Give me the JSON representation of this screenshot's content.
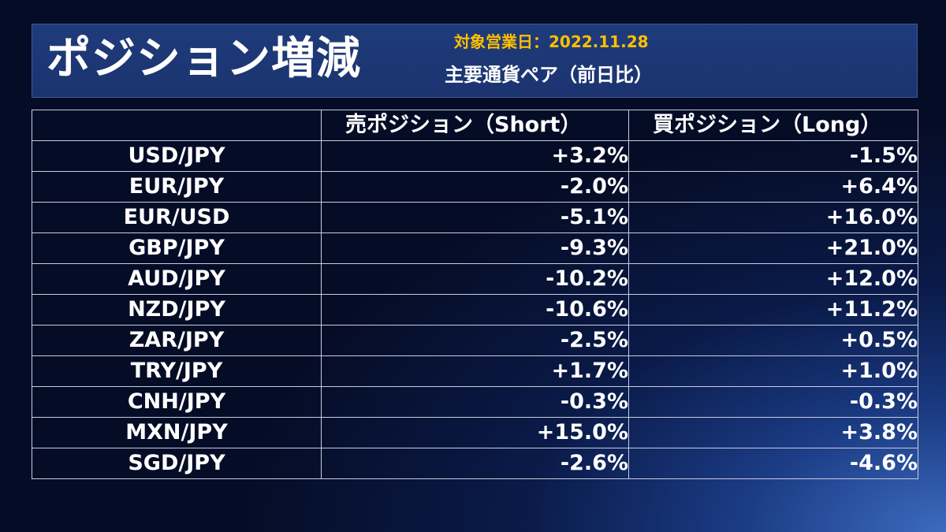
{
  "header": {
    "title": "ポジション増減",
    "date_label": "対象営業日：2022.11.28",
    "subtitle": "主要通貨ペア（前日比）"
  },
  "table": {
    "columns": [
      "",
      "売ポジション（Short）",
      "買ポジション（Long）"
    ],
    "rows": [
      {
        "pair": "USD/JPY",
        "short": "+3.2%",
        "long": "-1.5%"
      },
      {
        "pair": "EUR/JPY",
        "short": "-2.0%",
        "long": "+6.4%"
      },
      {
        "pair": "EUR/USD",
        "short": "-5.1%",
        "long": "+16.0%"
      },
      {
        "pair": "GBP/JPY",
        "short": "-9.3%",
        "long": "+21.0%"
      },
      {
        "pair": "AUD/JPY",
        "short": "-10.2%",
        "long": "+12.0%"
      },
      {
        "pair": "NZD/JPY",
        "short": "-10.6%",
        "long": "+11.2%"
      },
      {
        "pair": "ZAR/JPY",
        "short": "-2.5%",
        "long": "+0.5%"
      },
      {
        "pair": "TRY/JPY",
        "short": "+1.7%",
        "long": "+1.0%"
      },
      {
        "pair": "CNH/JPY",
        "short": "-0.3%",
        "long": "-0.3%"
      },
      {
        "pair": "MXN/JPY",
        "short": "+15.0%",
        "long": "+3.8%"
      },
      {
        "pair": "SGD/JPY",
        "short": "-2.6%",
        "long": "-4.6%"
      }
    ]
  },
  "chart_data": {
    "type": "table",
    "title": "ポジション増減",
    "subtitle": "主要通貨ペア（前日比）",
    "date": "2022.11.28",
    "categories": [
      "USD/JPY",
      "EUR/JPY",
      "EUR/USD",
      "GBP/JPY",
      "AUD/JPY",
      "NZD/JPY",
      "ZAR/JPY",
      "TRY/JPY",
      "CNH/JPY",
      "MXN/JPY",
      "SGD/JPY"
    ],
    "series": [
      {
        "name": "売ポジション（Short）",
        "values": [
          3.2,
          -2.0,
          -5.1,
          -9.3,
          -10.2,
          -10.6,
          -2.5,
          1.7,
          -0.3,
          15.0,
          -2.6
        ]
      },
      {
        "name": "買ポジション（Long）",
        "values": [
          -1.5,
          6.4,
          16.0,
          21.0,
          12.0,
          11.2,
          0.5,
          1.0,
          -0.3,
          3.8,
          -4.6
        ]
      }
    ],
    "unit": "%"
  },
  "colors": {
    "title_text": "#ffffff",
    "date_text": "#ffc000",
    "header_bg": "#1f3b7a",
    "border": "#c8cde0"
  }
}
